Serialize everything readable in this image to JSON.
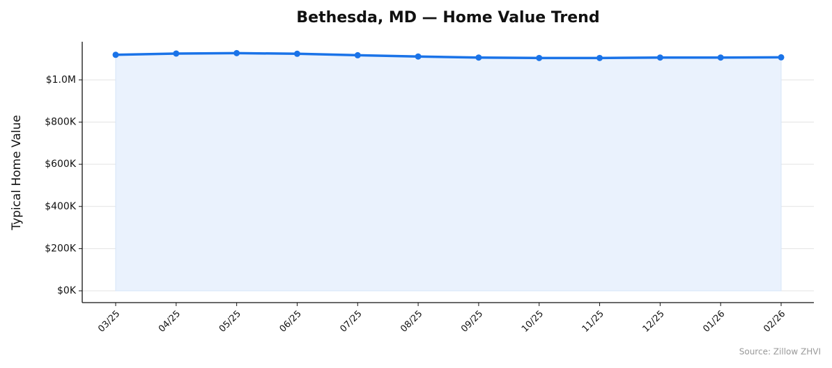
{
  "chart_data": {
    "type": "line",
    "title": "Bethesda, MD — Home Value Trend",
    "y_label": "Typical Home Value",
    "source": "Source: Zillow ZHVI",
    "categories": [
      "03/25",
      "04/25",
      "05/25",
      "06/25",
      "07/25",
      "08/25",
      "09/25",
      "10/25",
      "11/25",
      "12/25",
      "01/26",
      "02/26"
    ],
    "values": [
      1119000,
      1125000,
      1127000,
      1124000,
      1117000,
      1111000,
      1106000,
      1104000,
      1104000,
      1106000,
      1106000,
      1107000
    ],
    "color": "#1a73e8",
    "fill_color": "#eaf2fd",
    "ylim": [
      -56000,
      1181000
    ],
    "yticks": [
      {
        "value": 0,
        "label": "$0K"
      },
      {
        "value": 200000,
        "label": "$200K"
      },
      {
        "value": 400000,
        "label": "$400K"
      },
      {
        "value": 600000,
        "label": "$600K"
      },
      {
        "value": 800000,
        "label": "$800K"
      },
      {
        "value": 1000000,
        "label": "$1.0M"
      }
    ],
    "grid": true
  }
}
